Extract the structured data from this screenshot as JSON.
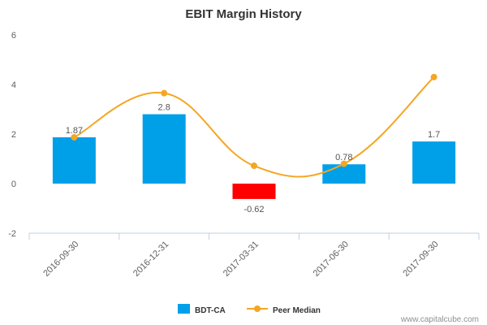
{
  "chart_data": {
    "type": "bar",
    "title": "EBIT Margin History",
    "categories": [
      "2016-09-30",
      "2016-12-31",
      "2017-03-31",
      "2017-06-30",
      "2017-09-30"
    ],
    "series": [
      {
        "name": "BDT-CA",
        "type": "bar",
        "color": "#00a0e8",
        "negative_color": "#ff0000",
        "values": [
          1.87,
          2.8,
          -0.62,
          0.78,
          1.7
        ],
        "labels": [
          "1.87",
          "2.8",
          "-0.62",
          "0.78",
          "1.7"
        ]
      },
      {
        "name": "Peer Median",
        "type": "line",
        "smooth": true,
        "color": "#f5a623",
        "values": [
          1.87,
          3.65,
          0.72,
          0.8,
          4.3
        ]
      }
    ],
    "ylim": [
      -2,
      6
    ],
    "yticks": [
      "-2",
      "0",
      "2",
      "4",
      "6"
    ],
    "grid": false,
    "legend_position": "bottom-center"
  },
  "footer": {
    "source": "www.capitalcube.com"
  }
}
